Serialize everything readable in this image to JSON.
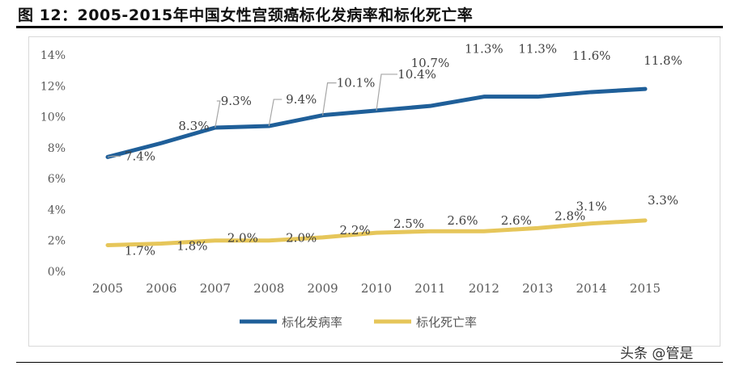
{
  "title": "图 12：2005-2015年中国女性宫颈癌标化发病率和标化死亡率",
  "watermark": "头条 @管是",
  "chart_data": {
    "type": "line",
    "title": "",
    "categories": [
      "2005",
      "2006",
      "2007",
      "2008",
      "2009",
      "2010",
      "2011",
      "2012",
      "2013",
      "2014",
      "2015"
    ],
    "y_ticks": [
      "0%",
      "2%",
      "4%",
      "6%",
      "8%",
      "10%",
      "12%",
      "14%"
    ],
    "ylim": [
      0,
      14
    ],
    "grid": false,
    "legend_position": "bottom",
    "series": [
      {
        "name": "标化发病率",
        "color": "#1f5f99",
        "values": [
          7.4,
          8.3,
          9.3,
          9.4,
          10.1,
          10.4,
          10.7,
          11.3,
          11.3,
          11.6,
          11.8
        ],
        "labels": [
          "7.4%",
          "8.3%",
          "9.3%",
          "9.4%",
          "10.1%",
          "10.4%",
          "10.7%",
          "11.3%",
          "11.3%",
          "11.6%",
          "11.8%"
        ]
      },
      {
        "name": "标化死亡率",
        "color": "#e6c65a",
        "values": [
          1.7,
          1.8,
          2.0,
          2.0,
          2.2,
          2.5,
          2.6,
          2.6,
          2.8,
          3.1,
          3.3
        ],
        "labels": [
          "1.7%",
          "1.8%",
          "2.0%",
          "2.0%",
          "2.2%",
          "2.5%",
          "2.6%",
          "2.6%",
          "2.8%",
          "3.1%",
          "3.3%"
        ]
      }
    ]
  }
}
